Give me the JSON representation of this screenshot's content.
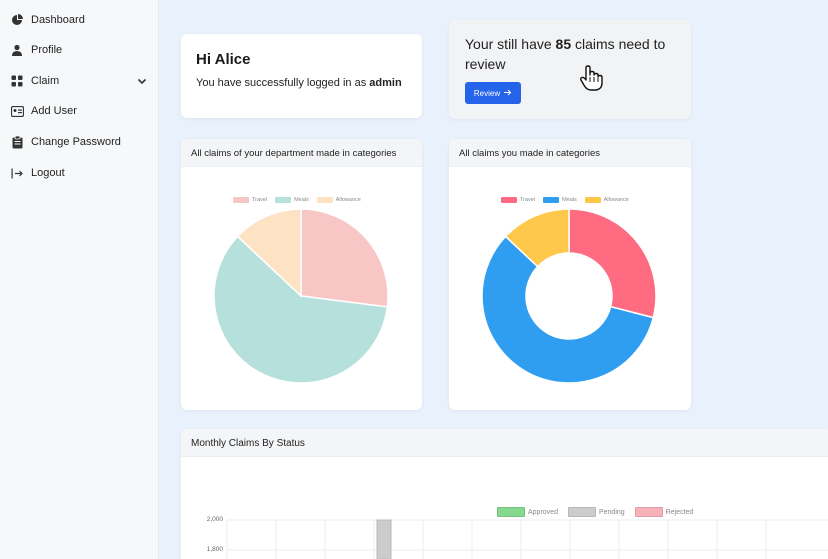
{
  "sidebar": {
    "items": [
      {
        "label": "Dashboard",
        "icon": "pie-chart-icon"
      },
      {
        "label": "Profile",
        "icon": "user-icon"
      },
      {
        "label": "Claim",
        "icon": "grid-icon",
        "has_submenu": true
      },
      {
        "label": "Add User",
        "icon": "id-card-icon"
      },
      {
        "label": "Change Password",
        "icon": "clipboard-icon"
      },
      {
        "label": "Logout",
        "icon": "logout-icon"
      }
    ]
  },
  "welcome": {
    "greeting": "Hi Alice",
    "message_prefix": "You have successfully logged in as ",
    "role": "admin"
  },
  "review": {
    "prefix": "Your still have ",
    "count": "85",
    "suffix": " claims need to review",
    "button_label": "Review"
  },
  "dept_chart": {
    "title": "All claims of your department made in categories",
    "chart_data": {
      "type": "pie",
      "categories": [
        "Travel",
        "Meals",
        "Allowance"
      ],
      "values": [
        27,
        60,
        13
      ],
      "colors": [
        "#f9c6c6",
        "#b5e0db",
        "#fde3c4"
      ]
    }
  },
  "my_chart": {
    "title": "All claims you made in categories",
    "chart_data": {
      "type": "pie",
      "donut": true,
      "categories": [
        "Travel",
        "Meals",
        "Allowance"
      ],
      "values": [
        29,
        58,
        13
      ],
      "colors": [
        "#ff6b81",
        "#2f9ef0",
        "#ffc84a"
      ]
    }
  },
  "monthly": {
    "title": "Monthly Claims By Status",
    "chart_data": {
      "type": "bar",
      "series": [
        {
          "name": "Approved",
          "color": "#86d88d"
        },
        {
          "name": "Pending",
          "color": "#cccccc"
        },
        {
          "name": "Rejected",
          "color": "#f7b2b8"
        }
      ],
      "yticks": [
        "2,000",
        "1,800"
      ]
    }
  },
  "colors": {
    "accent": "#2563eb",
    "page_bg": "#e9f1fc"
  }
}
